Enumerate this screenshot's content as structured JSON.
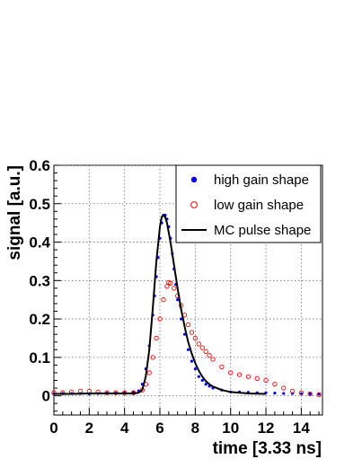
{
  "chart_data": {
    "type": "scatter",
    "title": "",
    "xlabel": "time [3.33 ns]",
    "ylabel": "signal [a.u.]",
    "xlim": [
      0,
      15.2
    ],
    "ylim": [
      -0.05,
      0.6
    ],
    "grid": true,
    "legend_position": "top-right",
    "xticks": [
      0,
      2,
      4,
      6,
      8,
      10,
      12,
      14
    ],
    "yticks": [
      0,
      0.1,
      0.2,
      0.3,
      0.4,
      0.5,
      0.6
    ],
    "ytick_labels": [
      "0",
      "0.1",
      "0.2",
      "0.3",
      "0.4",
      "0.5",
      "0.6"
    ],
    "series": [
      {
        "name": "high gain shape",
        "marker": "filled-circle",
        "color": "#0000ee",
        "x": [
          0.0,
          0.5,
          1.0,
          1.5,
          2.0,
          2.5,
          3.0,
          3.5,
          4.0,
          4.5,
          4.8,
          5.0,
          5.2,
          5.4,
          5.6,
          5.7,
          5.8,
          5.9,
          6.0,
          6.1,
          6.2,
          6.3,
          6.4,
          6.5,
          6.6,
          6.7,
          6.8,
          6.9,
          7.0,
          7.2,
          7.4,
          7.6,
          7.8,
          8.0,
          8.2,
          8.4,
          8.6,
          8.8,
          9.0,
          9.5,
          10.0,
          10.5,
          11.0,
          11.5,
          12.0,
          12.5,
          13.0,
          13.5,
          14.0,
          14.5,
          15.0
        ],
        "y": [
          0.005,
          0.006,
          0.006,
          0.006,
          0.005,
          0.006,
          0.007,
          0.007,
          0.008,
          0.01,
          0.013,
          0.03,
          0.07,
          0.13,
          0.21,
          0.26,
          0.31,
          0.36,
          0.41,
          0.45,
          0.47,
          0.47,
          0.46,
          0.44,
          0.41,
          0.37,
          0.33,
          0.29,
          0.25,
          0.2,
          0.16,
          0.12,
          0.09,
          0.07,
          0.05,
          0.04,
          0.03,
          0.025,
          0.02,
          0.015,
          0.01,
          0.01,
          0.009,
          0.008,
          0.008,
          0.007,
          0.006,
          0.006,
          0.005,
          0.005,
          0.004
        ]
      },
      {
        "name": "low gain shape",
        "marker": "open-circle",
        "color": "#ff0000",
        "x": [
          0.0,
          0.5,
          1.0,
          1.5,
          2.0,
          2.5,
          3.0,
          3.5,
          4.0,
          4.5,
          5.0,
          5.2,
          5.4,
          5.6,
          5.8,
          6.0,
          6.2,
          6.4,
          6.5,
          6.6,
          6.8,
          7.0,
          7.2,
          7.4,
          7.6,
          7.8,
          8.0,
          8.2,
          8.4,
          8.6,
          8.8,
          9.0,
          9.5,
          10.0,
          10.5,
          11.0,
          11.5,
          12.0,
          12.5,
          13.0,
          13.5,
          14.0,
          14.5,
          15.0
        ],
        "y": [
          0.008,
          0.008,
          0.01,
          0.012,
          0.012,
          0.01,
          0.008,
          0.008,
          0.008,
          0.008,
          0.015,
          0.03,
          0.06,
          0.1,
          0.15,
          0.2,
          0.25,
          0.285,
          0.295,
          0.293,
          0.28,
          0.26,
          0.235,
          0.21,
          0.185,
          0.165,
          0.15,
          0.135,
          0.125,
          0.115,
          0.105,
          0.095,
          0.075,
          0.06,
          0.055,
          0.05,
          0.045,
          0.04,
          0.03,
          0.02,
          0.012,
          0.008,
          0.005,
          0.003
        ]
      },
      {
        "name": "MC pulse shape",
        "marker": "line",
        "color": "#000000",
        "x": [
          0.0,
          1.0,
          2.0,
          3.0,
          4.0,
          4.5,
          4.8,
          5.0,
          5.2,
          5.4,
          5.6,
          5.8,
          6.0,
          6.1,
          6.2,
          6.3,
          6.4,
          6.6,
          6.8,
          7.0,
          7.2,
          7.4,
          7.6,
          7.8,
          8.0,
          8.2,
          8.4,
          8.6,
          8.8,
          9.0,
          9.5,
          10.0,
          11.0,
          12.0
        ],
        "y": [
          0.005,
          0.005,
          0.006,
          0.006,
          0.006,
          0.006,
          0.008,
          0.015,
          0.05,
          0.12,
          0.23,
          0.35,
          0.44,
          0.465,
          0.47,
          0.465,
          0.45,
          0.4,
          0.34,
          0.28,
          0.225,
          0.18,
          0.14,
          0.11,
          0.085,
          0.065,
          0.05,
          0.038,
          0.03,
          0.024,
          0.015,
          0.01,
          0.006,
          0.005
        ]
      }
    ]
  }
}
